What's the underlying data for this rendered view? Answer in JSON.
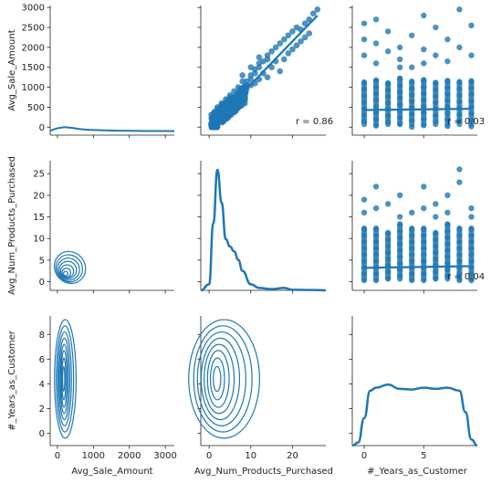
{
  "chart_data": {
    "type": "pairplot",
    "variables": [
      "Avg_Sale_Amount",
      "Avg_Num_Products_Purchased",
      "#_Years_as_Customer"
    ],
    "color": "#1f77b4",
    "axes": {
      "Avg_Sale_Amount": {
        "range": [
          -200,
          3250
        ],
        "ticks": [
          0,
          1000,
          2000,
          3000
        ],
        "tick_labels": [
          "0",
          "1000",
          "2000",
          "3000"
        ]
      },
      "Avg_Sale_Amount_y": {
        "range": [
          -200,
          3050
        ],
        "ticks": [
          0,
          500,
          1000,
          1500,
          2000,
          2500,
          3000
        ],
        "tick_labels": [
          "0",
          "500",
          "1000",
          "1500",
          "2000",
          "2500",
          "3000"
        ]
      },
      "Avg_Num_Products_Purchased": {
        "range": [
          -2,
          28
        ],
        "ticks": [
          0,
          5,
          10,
          15,
          20,
          25
        ],
        "tick_labels": [
          "0",
          "5",
          "10",
          "15",
          "20",
          "25"
        ]
      },
      "Avg_Num_Products_Purchased_x": {
        "range": [
          -2,
          28
        ],
        "ticks": [
          0,
          10,
          20
        ],
        "tick_labels": [
          "0",
          "10",
          "20"
        ]
      },
      "#_Years_as_Customer": {
        "range": [
          -1,
          9.5
        ],
        "ticks": [
          0,
          2,
          4,
          6,
          8
        ],
        "tick_labels": [
          "0",
          "2",
          "4",
          "6",
          "8"
        ]
      },
      "#_Years_as_Customer_x": {
        "range": [
          -1,
          9.5
        ],
        "ticks": [
          0,
          5
        ],
        "tick_labels": [
          "0",
          "5"
        ]
      }
    },
    "correlations": [
      {
        "row": "Avg_Sale_Amount",
        "col": "Avg_Num_Products_Purchased",
        "text": "r = 0.86"
      },
      {
        "row": "Avg_Sale_Amount",
        "col": "#_Years_as_Customer",
        "text": "r = 0.03"
      },
      {
        "row": "Avg_Num_Products_Purchased",
        "col": "#_Years_as_Customer",
        "text": "r = 0.04"
      }
    ],
    "scatter_sales_vs_products": [
      [
        1,
        120
      ],
      [
        1,
        180
      ],
      [
        2,
        150
      ],
      [
        2,
        250
      ],
      [
        2,
        300
      ],
      [
        2,
        200
      ],
      [
        3,
        280
      ],
      [
        3,
        350
      ],
      [
        3,
        220
      ],
      [
        3,
        420
      ],
      [
        4,
        380
      ],
      [
        4,
        460
      ],
      [
        4,
        300
      ],
      [
        5,
        520
      ],
      [
        5,
        600
      ],
      [
        5,
        450
      ],
      [
        6,
        640
      ],
      [
        6,
        700
      ],
      [
        6,
        560
      ],
      [
        7,
        760
      ],
      [
        7,
        820
      ],
      [
        7,
        680
      ],
      [
        8,
        900
      ],
      [
        8,
        980
      ],
      [
        8,
        800
      ],
      [
        9,
        1050
      ],
      [
        9,
        1150
      ],
      [
        10,
        1200
      ],
      [
        10,
        1300
      ],
      [
        11,
        1350
      ],
      [
        11,
        1450
      ],
      [
        12,
        1500
      ],
      [
        12,
        1600
      ],
      [
        13,
        1650
      ],
      [
        14,
        1800
      ],
      [
        14,
        1700
      ],
      [
        15,
        1900
      ],
      [
        16,
        2000
      ],
      [
        17,
        2100
      ],
      [
        18,
        2200
      ],
      [
        19,
        2300
      ],
      [
        20,
        2400
      ],
      [
        21,
        2500
      ],
      [
        22,
        2450
      ],
      [
        23,
        2600
      ],
      [
        24,
        2700
      ],
      [
        25,
        2850
      ],
      [
        26,
        2950
      ],
      [
        18,
        1700
      ],
      [
        15,
        1500
      ],
      [
        12,
        1200
      ],
      [
        10,
        1050
      ],
      [
        9,
        950
      ],
      [
        13,
        1350
      ],
      [
        16,
        1650
      ],
      [
        20,
        1950
      ],
      [
        22,
        2150
      ],
      [
        24,
        2350
      ],
      [
        17,
        1400
      ],
      [
        11,
        1100
      ],
      [
        6,
        900
      ],
      [
        7,
        1000
      ],
      [
        8,
        1150
      ],
      [
        5,
        800
      ],
      [
        4,
        700
      ],
      [
        3,
        600
      ],
      [
        2,
        500
      ],
      [
        14,
        1250
      ],
      [
        19,
        1850
      ],
      [
        21,
        2050
      ],
      [
        23,
        2250
      ],
      [
        10,
        1500
      ],
      [
        8,
        1300
      ],
      [
        12,
        1750
      ]
    ],
    "sales_reg_line": {
      "x": [
        1,
        26
      ],
      "y": [
        100,
        2800
      ]
    },
    "strip_sales_vs_years": {
      "years": [
        0,
        1,
        2,
        3,
        4,
        5,
        6,
        7,
        8,
        9
      ],
      "band_top": [
        1200,
        1250,
        1180,
        1300,
        1220,
        1260,
        1190,
        1240,
        1210,
        1230
      ],
      "outliers": [
        [
          0,
          2600
        ],
        [
          0,
          2200
        ],
        [
          0,
          1800
        ],
        [
          1,
          2700
        ],
        [
          1,
          2100
        ],
        [
          2,
          1900
        ],
        [
          2,
          2400
        ],
        [
          3,
          2000
        ],
        [
          3,
          1700
        ],
        [
          4,
          2300
        ],
        [
          4,
          1500
        ],
        [
          5,
          2800
        ],
        [
          5,
          1950
        ],
        [
          6,
          1800
        ],
        [
          6,
          2500
        ],
        [
          7,
          2200
        ],
        [
          7,
          1650
        ],
        [
          8,
          2950
        ],
        [
          8,
          2000
        ],
        [
          9,
          2550
        ],
        [
          9,
          1800
        ],
        [
          1,
          1600
        ],
        [
          3,
          1500
        ],
        [
          5,
          1600
        ]
      ]
    },
    "sales_years_line": {
      "x": [
        0,
        9
      ],
      "y": [
        430,
        460
      ]
    },
    "strip_products_vs_years": {
      "years": [
        0,
        1,
        2,
        3,
        4,
        5,
        6,
        7,
        8,
        9
      ],
      "band_top": [
        13,
        13,
        12,
        14,
        13,
        13,
        12,
        14,
        13,
        13
      ],
      "outliers": [
        [
          0,
          19
        ],
        [
          0,
          16
        ],
        [
          1,
          22
        ],
        [
          1,
          17
        ],
        [
          2,
          18
        ],
        [
          3,
          15
        ],
        [
          3,
          20
        ],
        [
          4,
          16
        ],
        [
          5,
          22
        ],
        [
          5,
          17
        ],
        [
          6,
          18
        ],
        [
          6,
          15
        ],
        [
          7,
          20
        ],
        [
          7,
          16
        ],
        [
          8,
          26
        ],
        [
          8,
          23
        ],
        [
          9,
          17
        ],
        [
          9,
          15
        ]
      ]
    },
    "products_years_line": {
      "x": [
        0,
        9
      ],
      "y": [
        3.2,
        3.6
      ]
    },
    "kde_sales_diag": {
      "x": [
        -200,
        0,
        200,
        400,
        600,
        800,
        1000,
        1500,
        2000,
        2500,
        3000,
        3250
      ],
      "density": [
        0.01,
        0.08,
        0.11,
        0.09,
        0.06,
        0.04,
        0.03,
        0.015,
        0.008,
        0.004,
        0.002,
        0.001
      ]
    },
    "kde_products_diag": {
      "x": [
        -2,
        0,
        1,
        2,
        3,
        4,
        5,
        6,
        7,
        8,
        10,
        12,
        15,
        18,
        20,
        25,
        28
      ],
      "density": [
        0.0,
        0.05,
        0.55,
        0.99,
        0.72,
        0.42,
        0.36,
        0.32,
        0.25,
        0.16,
        0.05,
        0.02,
        0.01,
        0.02,
        0.005,
        0.003,
        0.0
      ]
    },
    "kde_years_diag": {
      "x": [
        -1,
        -0.5,
        0,
        0.5,
        1,
        2,
        3,
        4,
        5,
        6,
        7,
        8,
        8.5,
        9,
        9.5
      ],
      "density": [
        0.0,
        0.05,
        0.45,
        0.9,
        0.95,
        1.0,
        0.93,
        0.92,
        0.95,
        0.93,
        0.95,
        0.9,
        0.55,
        0.1,
        0.0
      ]
    },
    "kde2d_products_vs_sales": {
      "levels": [
        {
          "cx": 350,
          "cy": 3.3,
          "rx": 420,
          "ry": 3.8,
          "rot": 38
        },
        {
          "cx": 330,
          "cy": 3.1,
          "rx": 360,
          "ry": 3.2,
          "rot": 38
        },
        {
          "cx": 310,
          "cy": 2.9,
          "rx": 300,
          "ry": 2.6,
          "rot": 38
        },
        {
          "cx": 290,
          "cy": 2.7,
          "rx": 240,
          "ry": 2.0,
          "rot": 38
        },
        {
          "cx": 270,
          "cy": 2.4,
          "rx": 180,
          "ry": 1.5,
          "rot": 38
        },
        {
          "cx": 250,
          "cy": 2.1,
          "rx": 120,
          "ry": 1.0,
          "rot": 38
        },
        {
          "cx": 230,
          "cy": 1.9,
          "rx": 60,
          "ry": 0.5,
          "rot": 38
        }
      ]
    },
    "kde2d_years_vs_sales": {
      "levels": [
        {
          "cx": 220,
          "cy": 4.4,
          "rx": 300,
          "ry": 4.8
        },
        {
          "cx": 210,
          "cy": 4.4,
          "rx": 240,
          "ry": 4.3
        },
        {
          "cx": 200,
          "cy": 4.4,
          "rx": 190,
          "ry": 3.8
        },
        {
          "cx": 195,
          "cy": 4.4,
          "rx": 150,
          "ry": 3.3
        },
        {
          "cx": 190,
          "cy": 4.4,
          "rx": 115,
          "ry": 2.8
        },
        {
          "cx": 185,
          "cy": 4.4,
          "rx": 85,
          "ry": 2.3
        },
        {
          "cx": 180,
          "cy": 4.4,
          "rx": 55,
          "ry": 1.7
        },
        {
          "cx": 175,
          "cy": 4.4,
          "rx": 30,
          "ry": 1.0
        }
      ]
    },
    "kde2d_years_vs_products": {
      "levels": [
        {
          "cx": 3.6,
          "cy": 4.4,
          "rx": 8.5,
          "ry": 4.8
        },
        {
          "cx": 3.3,
          "cy": 4.4,
          "rx": 7.0,
          "ry": 4.3
        },
        {
          "cx": 3.0,
          "cy": 4.4,
          "rx": 5.8,
          "ry": 3.8
        },
        {
          "cx": 2.7,
          "cy": 4.4,
          "rx": 4.6,
          "ry": 3.3
        },
        {
          "cx": 2.4,
          "cy": 4.4,
          "rx": 3.6,
          "ry": 2.8
        },
        {
          "cx": 2.2,
          "cy": 4.4,
          "rx": 2.6,
          "ry": 2.3
        },
        {
          "cx": 2.0,
          "cy": 4.4,
          "rx": 1.7,
          "ry": 1.7
        },
        {
          "cx": 1.9,
          "cy": 4.4,
          "rx": 0.9,
          "ry": 1.0
        }
      ]
    }
  }
}
